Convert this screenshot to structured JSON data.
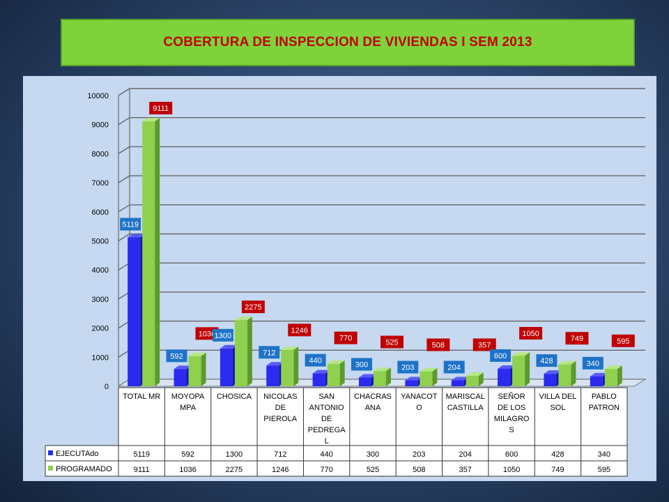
{
  "title": "COBERTURA DE INSPECCION DE VIVIENDAS I SEM  2013",
  "colors": {
    "ejecutado": "#2b2bf0",
    "programado": "#8fd14f",
    "label_blue": "#1e73c8",
    "label_red": "#c00000",
    "plot_bg": "#c6d9f1"
  },
  "chart_data": {
    "type": "bar",
    "categories": [
      "TOTAL MR",
      "MOYOPA MPA",
      "CHOSICA",
      "NICOLAS DE PIEROLA",
      "SAN ANTONIO DE PEDREGA L",
      "CHACRAS ANA",
      "YANACOT O",
      "MARISCAL CASTILLA",
      "SEÑOR DE LOS MILAGRO S",
      "VILLA DEL SOL",
      "PABLO PATRON"
    ],
    "category_lines": [
      [
        "TOTAL MR"
      ],
      [
        "MOYOPA",
        "MPA"
      ],
      [
        "CHOSICA"
      ],
      [
        "NICOLAS",
        "DE",
        "PIEROLA"
      ],
      [
        "SAN",
        "ANTONIO",
        "DE",
        "PEDREGA",
        "L"
      ],
      [
        "CHACRAS",
        "ANA"
      ],
      [
        "YANACOT",
        "O"
      ],
      [
        "MARISCAL",
        "CASTILLA"
      ],
      [
        "SEÑOR",
        "DE LOS",
        "MILAGRO",
        "S"
      ],
      [
        "VILLA DEL",
        "SOL"
      ],
      [
        "PABLO",
        "PATRON"
      ]
    ],
    "series": [
      {
        "name": "EJECUTAdo",
        "values": [
          5119,
          592,
          1300,
          712,
          440,
          300,
          203,
          204,
          600,
          428,
          340
        ]
      },
      {
        "name": "PROGRAMADO",
        "values": [
          9111,
          1036,
          2275,
          1246,
          770,
          525,
          508,
          357,
          1050,
          749,
          595
        ]
      }
    ],
    "ylim": [
      0,
      10000
    ],
    "yticks": [
      0,
      1000,
      2000,
      3000,
      4000,
      5000,
      6000,
      7000,
      8000,
      9000,
      10000
    ],
    "grid": true,
    "legend": "data-table"
  }
}
